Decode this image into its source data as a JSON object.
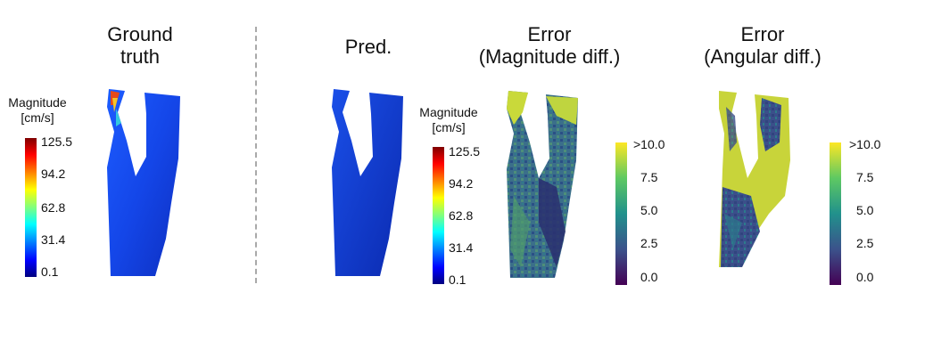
{
  "panels": {
    "ground_truth": {
      "title_line1": "Ground",
      "title_line2": "truth"
    },
    "pred": {
      "title": "Pred."
    },
    "error_mag": {
      "title_line1": "Error",
      "title_line2": "(Magnitude diff.)"
    },
    "error_ang": {
      "title_line1": "Error",
      "title_line2": "(Angular diff.)"
    }
  },
  "colorbars": {
    "magnitude": {
      "title_line1": "Magnitude",
      "title_line2": "[cm/s]",
      "ticks": [
        "125.5",
        "94.2",
        "62.8",
        "31.4",
        "0.1"
      ],
      "colormap": "jet",
      "colors": [
        "#00007f",
        "#0000ff",
        "#00ffff",
        "#ffff00",
        "#ff0000",
        "#7f0000"
      ]
    },
    "error": {
      "ticks": [
        ">10.0",
        "7.5",
        "5.0",
        "2.5",
        "0.0"
      ],
      "colormap": "viridis",
      "colors": [
        "#440154",
        "#3b528b",
        "#21918c",
        "#5ec962",
        "#fde725"
      ]
    }
  }
}
